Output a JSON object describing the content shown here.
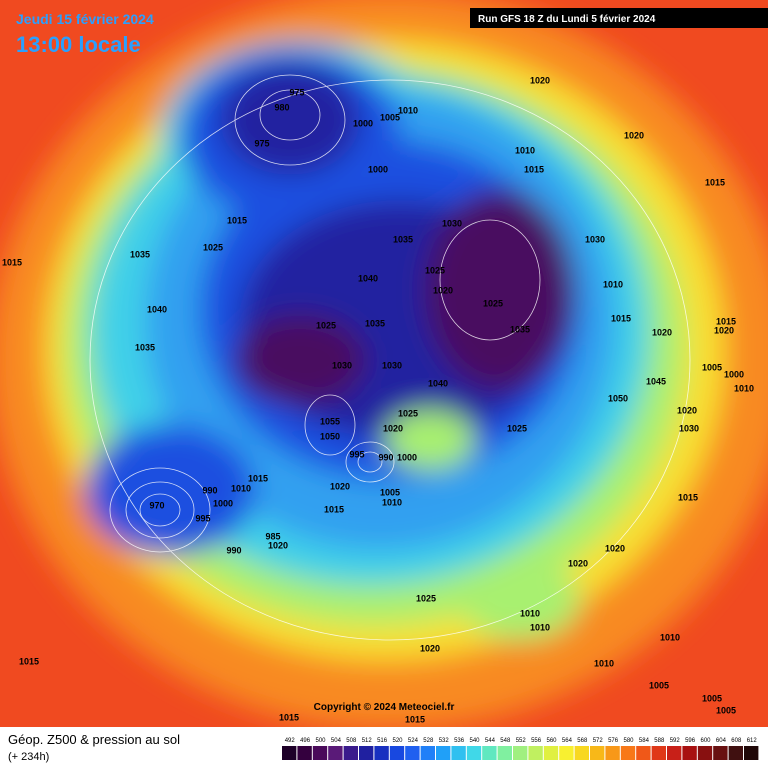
{
  "header": {
    "date": "Jeudi 15 février 2024",
    "time": "13:00 locale",
    "run": "Run GFS 18 Z du Lundi 5 février 2024"
  },
  "copyright": "Copyright © 2024 Meteociel.fr",
  "footer": {
    "title": "Géop. Z500 & pression au sol",
    "subtitle": "(+ 234h)"
  },
  "colorbar": {
    "labels": [
      492,
      496,
      500,
      504,
      508,
      512,
      516,
      520,
      524,
      528,
      532,
      536,
      540,
      544,
      548,
      552,
      556,
      560,
      564,
      568,
      572,
      576,
      580,
      584,
      588,
      592,
      596,
      600,
      604,
      608,
      612
    ],
    "colors": [
      "#1e0028",
      "#34003e",
      "#4a0a5a",
      "#5a1a78",
      "#3a1a8c",
      "#2020a0",
      "#1830c0",
      "#1848e0",
      "#2060f0",
      "#2080f8",
      "#20a0f8",
      "#30c0f0",
      "#40d8e8",
      "#60e8c0",
      "#80f0a0",
      "#a0f080",
      "#c0f060",
      "#e0f040",
      "#f8f030",
      "#f8d820",
      "#f8b818",
      "#f89818",
      "#f87818",
      "#f05818",
      "#e03818",
      "#c82018",
      "#a81010",
      "#881010",
      "#681010",
      "#401010",
      "#200808"
    ]
  },
  "map": {
    "pressure_labels": [
      975,
      980,
      975,
      1000,
      1005,
      1010,
      1000,
      1020,
      1020,
      1010,
      1015,
      1015,
      1015,
      1025,
      1015,
      1035,
      1040,
      1035,
      1030,
      1035,
      1030,
      1025,
      1020,
      1025,
      1040,
      1035,
      1025,
      1030,
      1030,
      1035,
      1010,
      1015,
      1020,
      1040,
      1045,
      1050,
      1025,
      1055,
      1050,
      1020,
      995,
      990,
      1000,
      1015,
      1020,
      1005,
      1010,
      1015,
      970,
      995,
      990,
      1000,
      1010,
      990,
      985,
      1020,
      1025,
      1030,
      1020,
      1015,
      1020,
      1020,
      1025,
      1010,
      1010,
      1020,
      1010,
      1010,
      1015,
      1005,
      1005,
      1005,
      1015,
      1015,
      1005,
      1010,
      1000,
      1015,
      1020
    ]
  }
}
